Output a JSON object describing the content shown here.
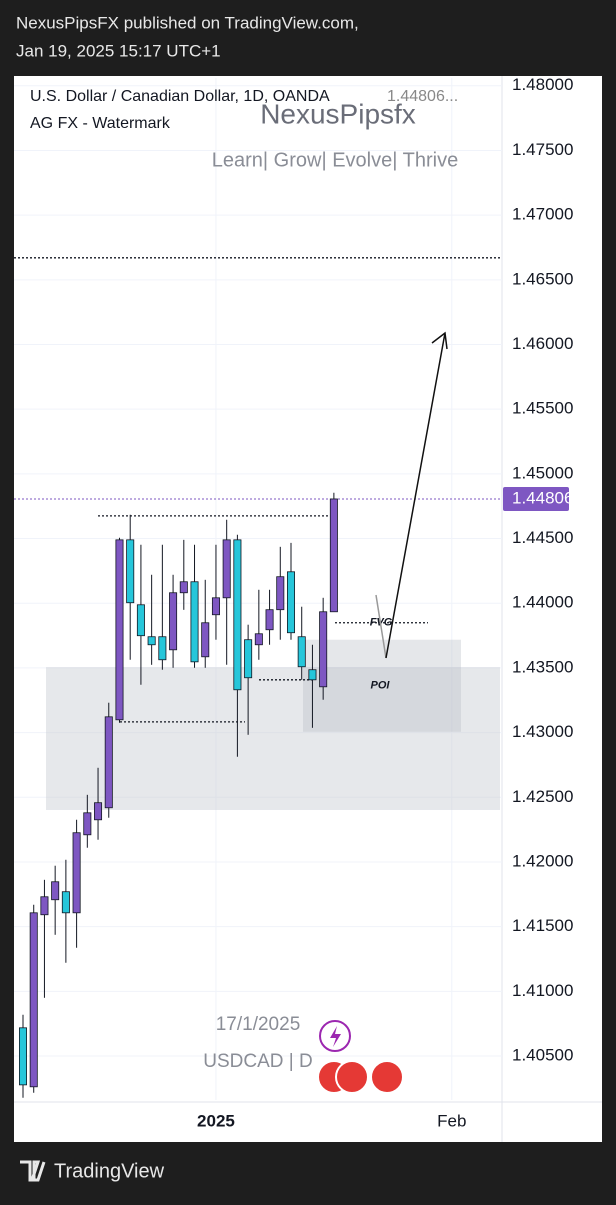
{
  "header": {
    "publisher": "NexusPipsFX published on TradingView.com,",
    "date": "Jan 19, 2025 15:17 UTC+1",
    "footer": "TradingView"
  },
  "chart_data": {
    "type": "candlestick",
    "symbol": "U.S. Dollar / Canadian Dollar, 1D, OANDA",
    "symbol_price": "1.44806...",
    "indicator": "AG FX - Watermark",
    "watermark": "NexusPipsfx",
    "tagline": "Learn| Grow| Evolve| Thrive",
    "note_date": "17/1/2025",
    "note_symbol": "USDCAD | D",
    "price_tag": "1.44806",
    "up_color": "#7e57c2",
    "down_color": "#26c6da",
    "categories": [
      null,
      null,
      null,
      null,
      null,
      null,
      null,
      null,
      null,
      null,
      null,
      null,
      null,
      null,
      null,
      null,
      null,
      null,
      "2025",
      null,
      null,
      null,
      null,
      null,
      null,
      null,
      null,
      null,
      null,
      null,
      null,
      null,
      null,
      null,
      null,
      null,
      null,
      null,
      null,
      null,
      "Feb",
      null,
      null,
      null,
      null
    ],
    "open": [
      1.40718,
      1.40262,
      1.41592,
      1.41708,
      1.4177,
      1.41607,
      1.4221,
      1.42326,
      1.42419,
      1.43099,
      1.4449,
      1.43988,
      1.43741,
      1.43741,
      1.4364,
      1.44081,
      1.44166,
      1.43586,
      1.43911,
      1.44042,
      1.4449,
      1.43718,
      1.43679,
      1.43795,
      1.4395,
      1.44243,
      1.43741,
      1.43486,
      1.43354,
      1.43934,
      null,
      null,
      null,
      null,
      null,
      null,
      null,
      null,
      null,
      null,
      null,
      null,
      null,
      null,
      null
    ],
    "high": [
      1.40819,
      1.41669,
      1.41862,
      1.41971,
      1.42017,
      1.42326,
      1.42519,
      1.42728,
      1.43231,
      1.44506,
      1.44684,
      1.44452,
      1.4422,
      1.44452,
      1.4422,
      1.4449,
      1.44452,
      1.44181,
      1.44452,
      1.44645,
      1.44529,
      1.43834,
      1.44104,
      1.44104,
      1.44436,
      1.44467,
      1.43973,
      1.43679,
      1.44042,
      1.44854,
      null,
      null,
      null,
      null,
      null,
      null,
      null,
      null,
      null,
      null,
      null,
      null,
      null,
      null,
      null
    ],
    "low": [
      1.40177,
      1.40216,
      1.4095,
      1.41437,
      1.41221,
      1.41337,
      1.4211,
      1.42172,
      1.42342,
      1.43076,
      1.43563,
      1.4337,
      1.43524,
      1.43486,
      1.43501,
      1.43949,
      1.43501,
      1.43501,
      1.43718,
      1.43524,
      1.42813,
      1.42983,
      1.43563,
      1.43679,
      1.43718,
      1.43718,
      1.43408,
      1.43037,
      1.43254,
      1.43934,
      null,
      null,
      null,
      null,
      null,
      null,
      null,
      null,
      null,
      null,
      null,
      null,
      null,
      null,
      null
    ],
    "close": [
      1.40277,
      1.41607,
      1.41731,
      1.41847,
      1.41607,
      1.42226,
      1.4238,
      1.42458,
      1.43122,
      1.4449,
      1.44004,
      1.43749,
      1.43679,
      1.43563,
      1.44081,
      1.44166,
      1.43547,
      1.43849,
      1.44042,
      1.4449,
      1.43331,
      1.43424,
      1.43764,
      1.4395,
      1.44205,
      1.43772,
      1.43509,
      1.43408,
      1.43934,
      1.44806,
      null,
      null,
      null,
      null,
      null,
      null,
      null,
      null,
      null,
      null,
      null,
      null,
      null,
      null,
      null
    ],
    "levels": [
      {
        "value": 1.4667
      },
      {
        "value": 1.44806,
        "color": "#7e57c2"
      },
      {
        "value": 1.44675
      },
      {
        "value": 1.43408
      },
      {
        "value": 1.43083
      },
      {
        "value": 1.43849,
        "label": "FVG"
      }
    ],
    "zones": [
      {
        "from": 1.42402,
        "to": 1.43506
      },
      {
        "from": 1.43006,
        "to": 1.43718,
        "label": "POI"
      }
    ],
    "ylim": [
      1.4016,
      1.4806
    ],
    "yticks": [
      {
        "value": 1.405,
        "label": "1.40500"
      },
      {
        "value": 1.41,
        "label": "1.41000"
      },
      {
        "value": 1.415,
        "label": "1.41500"
      },
      {
        "value": 1.42,
        "label": "1.42000"
      },
      {
        "value": 1.425,
        "label": "1.42500"
      },
      {
        "value": 1.43,
        "label": "1.43000"
      },
      {
        "value": 1.435,
        "label": "1.43500"
      },
      {
        "value": 1.44,
        "label": "1.44000"
      },
      {
        "value": 1.445,
        "label": "1.44500"
      },
      {
        "value": 1.45,
        "label": "1.45000"
      },
      {
        "value": 1.455,
        "label": "1.45500"
      },
      {
        "value": 1.46,
        "label": "1.46000"
      },
      {
        "value": 1.465,
        "label": "1.46500"
      },
      {
        "value": 1.47,
        "label": "1.47000"
      },
      {
        "value": 1.475,
        "label": "1.47500"
      },
      {
        "value": 1.48,
        "label": "1.48000"
      }
    ],
    "grid": true
  }
}
